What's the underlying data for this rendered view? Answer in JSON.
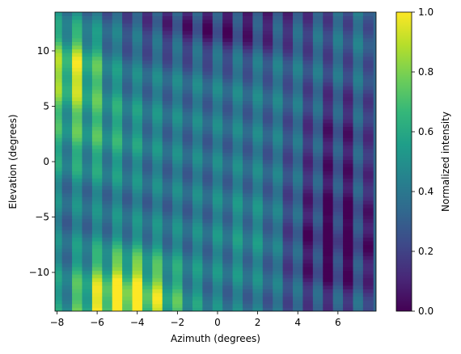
{
  "chart_data": {
    "type": "heatmap",
    "xlabel": "Azimuth (degrees)",
    "ylabel": "Elevation (degrees)",
    "xlim": [
      -8.1,
      7.9
    ],
    "ylim": [
      -13.5,
      13.5
    ],
    "x_ticks": [
      -8,
      -6,
      -4,
      -2,
      0,
      2,
      4,
      6
    ],
    "y_ticks": [
      -10,
      -5,
      0,
      5,
      10
    ],
    "x_tick_labels": [
      "−8",
      "−6",
      "−4",
      "−2",
      "0",
      "2",
      "4",
      "6"
    ],
    "y_tick_labels": [
      "−10",
      "−5",
      "0",
      "5",
      "10"
    ],
    "colorbar": {
      "label": "Normalized intensity",
      "range": [
        0.0,
        1.0
      ],
      "ticks": [
        0.0,
        0.2,
        0.4,
        0.6,
        0.8,
        1.0
      ],
      "tick_labels": [
        "0.0",
        "0.2",
        "0.4",
        "0.6",
        "0.8",
        "1.0"
      ],
      "colormap": "viridis"
    },
    "azimuth_columns": [
      -8,
      -7.5,
      -7,
      -6.5,
      -6,
      -5.5,
      -5,
      -4.5,
      -4,
      -3.5,
      -3,
      -2.5,
      -2,
      -1.5,
      -1,
      -0.5,
      0,
      0.5,
      1,
      1.5,
      2,
      2.5,
      3,
      3.5,
      4,
      4.5,
      5,
      5.5,
      6,
      6.5,
      7,
      7.5
    ],
    "elevation_rows": [
      -13,
      -12,
      -11,
      -10,
      -9,
      -8,
      -7,
      -6,
      -5,
      -4,
      -3,
      -2,
      -1,
      0,
      1,
      2,
      3,
      4,
      5,
      6,
      7,
      8,
      9,
      10,
      11,
      12,
      13
    ],
    "background_intensity": 0.38,
    "peak_intensity": 1.0,
    "peak_location": {
      "azimuth": -4.5,
      "elevation": -13
    },
    "secondary_maximum": {
      "azimuth": -7.5,
      "elevation": 8,
      "intensity": 0.82
    },
    "minimum_intensity": 0.02
  },
  "colors": {
    "viridis": [
      "#440154",
      "#482878",
      "#3e4989",
      "#31688e",
      "#26828e",
      "#1f9e89",
      "#35b779",
      "#6ece58",
      "#b5de2b",
      "#fde725"
    ],
    "axes": "#000000"
  }
}
